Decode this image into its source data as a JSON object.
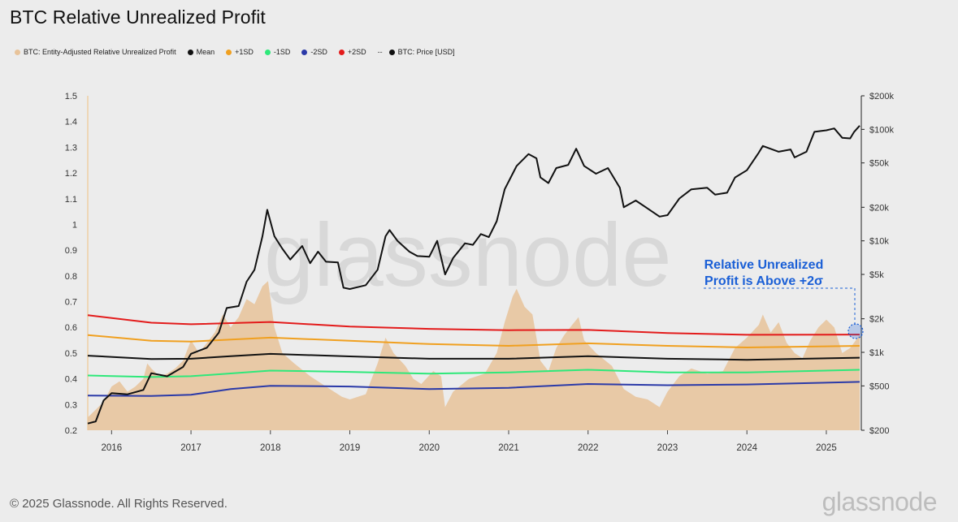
{
  "title": "BTC Relative Unrealized Profit",
  "legend": [
    {
      "label": "BTC: Entity-Adjusted Relative Unrealized Profit",
      "color": "#e8c39a",
      "dash": false
    },
    {
      "label": "Mean",
      "color": "#111111",
      "dash": false
    },
    {
      "label": "+1SD",
      "color": "#f0a020",
      "dash": false
    },
    {
      "label": "-1SD",
      "color": "#2ee87a",
      "dash": false
    },
    {
      "label": "-2SD",
      "color": "#2b3aa8",
      "dash": false
    },
    {
      "label": "+2SD",
      "color": "#e31b1b",
      "dash": false
    },
    {
      "label": "BTC: Price [USD]",
      "color": "#111111",
      "dash": true
    }
  ],
  "footer": "© 2025 Glassnode. All Rights Reserved.",
  "brand": "glassnode",
  "watermark": "glassnode",
  "annotation": {
    "line1": "Relative Unrealized",
    "line2": "Profit is Above +2σ",
    "color": "#1a5fd6"
  },
  "chart_data": {
    "type": "line",
    "title": "BTC Relative Unrealized Profit",
    "x_ticks": [
      "2016",
      "2017",
      "2018",
      "2019",
      "2020",
      "2021",
      "2022",
      "2023",
      "2024",
      "2025"
    ],
    "x_range": [
      2015.7,
      2025.42
    ],
    "y_left": {
      "range": [
        0.2,
        1.5
      ],
      "ticks": [
        "0.2",
        "0.3",
        "0.4",
        "0.5",
        "0.6",
        "0.7",
        "0.8",
        "0.9",
        "1",
        "1.1",
        "1.2",
        "1.3",
        "1.4",
        "1.5"
      ]
    },
    "y_right": {
      "scale": "log",
      "range": [
        200,
        200000
      ],
      "ticks": [
        {
          "label": "$200",
          "value": 200
        },
        {
          "label": "$500",
          "value": 500
        },
        {
          "label": "$1k",
          "value": 1000
        },
        {
          "label": "$2k",
          "value": 2000
        },
        {
          "label": "$5k",
          "value": 5000
        },
        {
          "label": "$10k",
          "value": 10000
        },
        {
          "label": "$20k",
          "value": 20000
        },
        {
          "label": "$50k",
          "value": 50000
        },
        {
          "label": "$100k",
          "value": 100000
        },
        {
          "label": "$200k",
          "value": 200000
        }
      ]
    },
    "series": [
      {
        "name": "BTC: Entity-Adjusted Relative Unrealized Profit",
        "kind": "area",
        "axis": "left",
        "color": "#e8c39a",
        "points": [
          [
            2015.7,
            0.25
          ],
          [
            2015.8,
            0.28
          ],
          [
            2015.9,
            0.31
          ],
          [
            2016.0,
            0.37
          ],
          [
            2016.1,
            0.39
          ],
          [
            2016.2,
            0.35
          ],
          [
            2016.3,
            0.37
          ],
          [
            2016.4,
            0.4
          ],
          [
            2016.45,
            0.46
          ],
          [
            2016.5,
            0.44
          ],
          [
            2016.6,
            0.41
          ],
          [
            2016.7,
            0.42
          ],
          [
            2016.8,
            0.44
          ],
          [
            2016.9,
            0.47
          ],
          [
            2017.0,
            0.55
          ],
          [
            2017.1,
            0.5
          ],
          [
            2017.2,
            0.54
          ],
          [
            2017.3,
            0.58
          ],
          [
            2017.4,
            0.65
          ],
          [
            2017.5,
            0.6
          ],
          [
            2017.6,
            0.64
          ],
          [
            2017.7,
            0.71
          ],
          [
            2017.8,
            0.69
          ],
          [
            2017.9,
            0.76
          ],
          [
            2017.97,
            0.78
          ],
          [
            2018.05,
            0.6
          ],
          [
            2018.15,
            0.5
          ],
          [
            2018.3,
            0.46
          ],
          [
            2018.5,
            0.41
          ],
          [
            2018.7,
            0.37
          ],
          [
            2018.9,
            0.33
          ],
          [
            2019.0,
            0.32
          ],
          [
            2019.2,
            0.34
          ],
          [
            2019.35,
            0.46
          ],
          [
            2019.45,
            0.56
          ],
          [
            2019.55,
            0.5
          ],
          [
            2019.7,
            0.45
          ],
          [
            2019.8,
            0.4
          ],
          [
            2019.9,
            0.38
          ],
          [
            2020.05,
            0.43
          ],
          [
            2020.15,
            0.41
          ],
          [
            2020.2,
            0.29
          ],
          [
            2020.3,
            0.35
          ],
          [
            2020.5,
            0.4
          ],
          [
            2020.7,
            0.42
          ],
          [
            2020.85,
            0.5
          ],
          [
            2020.95,
            0.62
          ],
          [
            2021.05,
            0.72
          ],
          [
            2021.1,
            0.75
          ],
          [
            2021.2,
            0.68
          ],
          [
            2021.3,
            0.65
          ],
          [
            2021.4,
            0.47
          ],
          [
            2021.5,
            0.43
          ],
          [
            2021.6,
            0.52
          ],
          [
            2021.7,
            0.57
          ],
          [
            2021.8,
            0.61
          ],
          [
            2021.88,
            0.64
          ],
          [
            2021.95,
            0.55
          ],
          [
            2022.1,
            0.5
          ],
          [
            2022.3,
            0.45
          ],
          [
            2022.45,
            0.36
          ],
          [
            2022.6,
            0.33
          ],
          [
            2022.75,
            0.32
          ],
          [
            2022.9,
            0.29
          ],
          [
            2023.0,
            0.35
          ],
          [
            2023.15,
            0.41
          ],
          [
            2023.3,
            0.44
          ],
          [
            2023.5,
            0.42
          ],
          [
            2023.7,
            0.43
          ],
          [
            2023.85,
            0.52
          ],
          [
            2024.0,
            0.56
          ],
          [
            2024.15,
            0.61
          ],
          [
            2024.2,
            0.65
          ],
          [
            2024.3,
            0.58
          ],
          [
            2024.4,
            0.62
          ],
          [
            2024.5,
            0.54
          ],
          [
            2024.6,
            0.5
          ],
          [
            2024.7,
            0.48
          ],
          [
            2024.8,
            0.55
          ],
          [
            2024.9,
            0.6
          ],
          [
            2025.0,
            0.63
          ],
          [
            2025.1,
            0.6
          ],
          [
            2025.2,
            0.5
          ],
          [
            2025.3,
            0.52
          ],
          [
            2025.42,
            0.57
          ]
        ]
      },
      {
        "name": "Mean",
        "kind": "line",
        "axis": "left",
        "color": "#111111",
        "points": [
          [
            2015.7,
            0.49
          ],
          [
            2016.5,
            0.477
          ],
          [
            2017.0,
            0.478
          ],
          [
            2017.5,
            0.488
          ],
          [
            2018.0,
            0.497
          ],
          [
            2019.0,
            0.487
          ],
          [
            2020.0,
            0.478
          ],
          [
            2021.0,
            0.478
          ],
          [
            2022.0,
            0.488
          ],
          [
            2023.0,
            0.478
          ],
          [
            2024.0,
            0.474
          ],
          [
            2025.42,
            0.482
          ]
        ]
      },
      {
        "name": "+1SD",
        "kind": "line",
        "axis": "left",
        "color": "#f0a020",
        "points": [
          [
            2015.7,
            0.57
          ],
          [
            2016.5,
            0.548
          ],
          [
            2017.0,
            0.545
          ],
          [
            2018.0,
            0.56
          ],
          [
            2019.0,
            0.548
          ],
          [
            2020.0,
            0.535
          ],
          [
            2021.0,
            0.528
          ],
          [
            2022.0,
            0.538
          ],
          [
            2023.0,
            0.528
          ],
          [
            2024.0,
            0.522
          ],
          [
            2025.42,
            0.528
          ]
        ]
      },
      {
        "name": "+2SD",
        "kind": "line",
        "axis": "left",
        "color": "#e31b1b",
        "points": [
          [
            2015.7,
            0.647
          ],
          [
            2016.5,
            0.618
          ],
          [
            2017.0,
            0.612
          ],
          [
            2018.0,
            0.621
          ],
          [
            2019.0,
            0.603
          ],
          [
            2020.0,
            0.594
          ],
          [
            2021.0,
            0.589
          ],
          [
            2022.0,
            0.59
          ],
          [
            2023.0,
            0.578
          ],
          [
            2024.0,
            0.571
          ],
          [
            2025.42,
            0.572
          ]
        ]
      },
      {
        "name": "-1SD",
        "kind": "line",
        "axis": "left",
        "color": "#2ee87a",
        "points": [
          [
            2015.7,
            0.413
          ],
          [
            2016.5,
            0.407
          ],
          [
            2017.0,
            0.41
          ],
          [
            2018.0,
            0.432
          ],
          [
            2019.0,
            0.427
          ],
          [
            2020.0,
            0.42
          ],
          [
            2021.0,
            0.425
          ],
          [
            2022.0,
            0.435
          ],
          [
            2023.0,
            0.425
          ],
          [
            2024.0,
            0.425
          ],
          [
            2025.42,
            0.435
          ]
        ]
      },
      {
        "name": "-2SD",
        "kind": "line",
        "axis": "left",
        "color": "#2b3aa8",
        "points": [
          [
            2015.7,
            0.335
          ],
          [
            2016.5,
            0.333
          ],
          [
            2017.0,
            0.338
          ],
          [
            2017.5,
            0.36
          ],
          [
            2018.0,
            0.373
          ],
          [
            2019.0,
            0.37
          ],
          [
            2020.0,
            0.36
          ],
          [
            2021.0,
            0.365
          ],
          [
            2022.0,
            0.38
          ],
          [
            2023.0,
            0.375
          ],
          [
            2024.0,
            0.378
          ],
          [
            2025.42,
            0.388
          ]
        ]
      },
      {
        "name": "BTC: Price [USD]",
        "kind": "line",
        "axis": "right",
        "color": "#111111",
        "points": [
          [
            2015.7,
            230
          ],
          [
            2015.8,
            240
          ],
          [
            2015.9,
            370
          ],
          [
            2016.0,
            430
          ],
          [
            2016.2,
            420
          ],
          [
            2016.4,
            460
          ],
          [
            2016.5,
            650
          ],
          [
            2016.7,
            610
          ],
          [
            2016.9,
            740
          ],
          [
            2017.0,
            970
          ],
          [
            2017.2,
            1100
          ],
          [
            2017.35,
            1500
          ],
          [
            2017.45,
            2500
          ],
          [
            2017.6,
            2600
          ],
          [
            2017.7,
            4300
          ],
          [
            2017.8,
            5500
          ],
          [
            2017.9,
            11000
          ],
          [
            2017.96,
            19000
          ],
          [
            2018.05,
            11000
          ],
          [
            2018.15,
            8500
          ],
          [
            2018.25,
            6800
          ],
          [
            2018.4,
            9000
          ],
          [
            2018.5,
            6300
          ],
          [
            2018.6,
            8000
          ],
          [
            2018.7,
            6500
          ],
          [
            2018.85,
            6400
          ],
          [
            2018.92,
            3800
          ],
          [
            2019.0,
            3700
          ],
          [
            2019.2,
            4000
          ],
          [
            2019.35,
            5500
          ],
          [
            2019.45,
            11000
          ],
          [
            2019.5,
            12500
          ],
          [
            2019.6,
            10000
          ],
          [
            2019.75,
            8000
          ],
          [
            2019.85,
            7300
          ],
          [
            2020.0,
            7200
          ],
          [
            2020.1,
            10000
          ],
          [
            2020.2,
            5000
          ],
          [
            2020.3,
            7000
          ],
          [
            2020.45,
            9500
          ],
          [
            2020.55,
            9200
          ],
          [
            2020.65,
            11500
          ],
          [
            2020.75,
            10800
          ],
          [
            2020.85,
            15000
          ],
          [
            2020.95,
            29000
          ],
          [
            2021.05,
            40000
          ],
          [
            2021.1,
            47000
          ],
          [
            2021.25,
            60000
          ],
          [
            2021.35,
            55000
          ],
          [
            2021.4,
            37000
          ],
          [
            2021.5,
            33000
          ],
          [
            2021.6,
            45000
          ],
          [
            2021.75,
            48000
          ],
          [
            2021.85,
            67000
          ],
          [
            2021.95,
            47000
          ],
          [
            2022.1,
            40000
          ],
          [
            2022.25,
            45000
          ],
          [
            2022.4,
            30000
          ],
          [
            2022.45,
            20000
          ],
          [
            2022.6,
            23000
          ],
          [
            2022.75,
            19500
          ],
          [
            2022.9,
            16500
          ],
          [
            2023.0,
            17000
          ],
          [
            2023.15,
            24000
          ],
          [
            2023.3,
            29000
          ],
          [
            2023.5,
            30000
          ],
          [
            2023.6,
            26000
          ],
          [
            2023.75,
            27000
          ],
          [
            2023.85,
            37000
          ],
          [
            2024.0,
            43000
          ],
          [
            2024.15,
            62000
          ],
          [
            2024.2,
            71000
          ],
          [
            2024.4,
            63000
          ],
          [
            2024.55,
            66000
          ],
          [
            2024.6,
            56000
          ],
          [
            2024.75,
            63000
          ],
          [
            2024.85,
            95000
          ],
          [
            2025.0,
            98000
          ],
          [
            2025.1,
            102000
          ],
          [
            2025.2,
            84000
          ],
          [
            2025.3,
            83000
          ],
          [
            2025.35,
            95000
          ],
          [
            2025.42,
            108000
          ]
        ]
      }
    ]
  }
}
